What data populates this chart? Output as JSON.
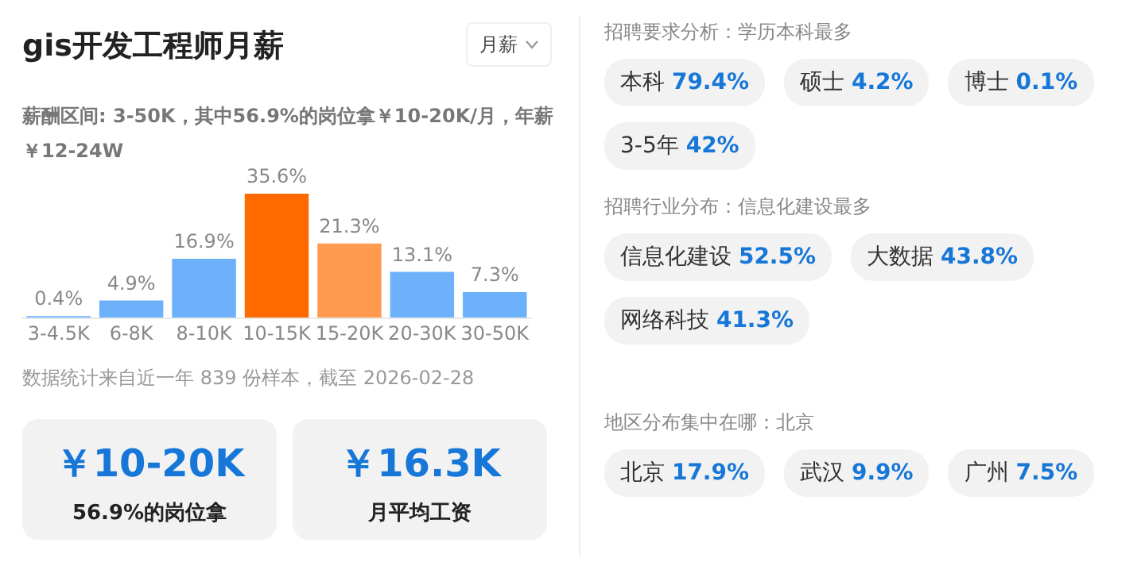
{
  "chart_data": [
    {
      "type": "bar",
      "title": "gis开发工程师月薪",
      "subtitle": "薪酬区间: 3-50K，其中56.9%的岗位拿￥10-20K/月，年薪￥12-24W",
      "categories": [
        "3-4.5K",
        "6-8K",
        "8-10K",
        "10-15K",
        "15-20K",
        "20-30K",
        "30-50K"
      ],
      "values": [
        0.4,
        4.9,
        16.9,
        35.6,
        21.3,
        13.1,
        7.3
      ],
      "value_labels": [
        "0.4%",
        "4.9%",
        "16.9%",
        "35.6%",
        "21.3%",
        "13.1%",
        "7.3%"
      ],
      "colors": [
        "#6eb1fb",
        "#6eb1fb",
        "#6eb1fb",
        "#ff6a00",
        "#ff9a4e",
        "#6eb1fb",
        "#6eb1fb"
      ],
      "annotations": [
        "月薪",
        "数据统计来自近一年 839 份样本，截至 2026-02-28",
        "￥10-20K",
        "56.9%的岗位拿",
        "￥16.3K",
        "月平均工资"
      ]
    },
    {
      "type": "other",
      "title": "招聘要求分析：学历本科最多",
      "annotations": [
        "本科 79.4%",
        "硕士 4.2%",
        "博士 0.1%",
        "3-5年 42%"
      ]
    },
    {
      "type": "other",
      "title": "招聘行业分布：信息化建设最多",
      "annotations": [
        "信息化建设 52.5%",
        "大数据 43.8%",
        "网络科技 41.3%"
      ]
    },
    {
      "type": "other",
      "title": "地区分布集中在哪：北京",
      "annotations": [
        "北京 17.9%",
        "武汉 9.9%",
        "广州 7.5%"
      ]
    }
  ]
}
